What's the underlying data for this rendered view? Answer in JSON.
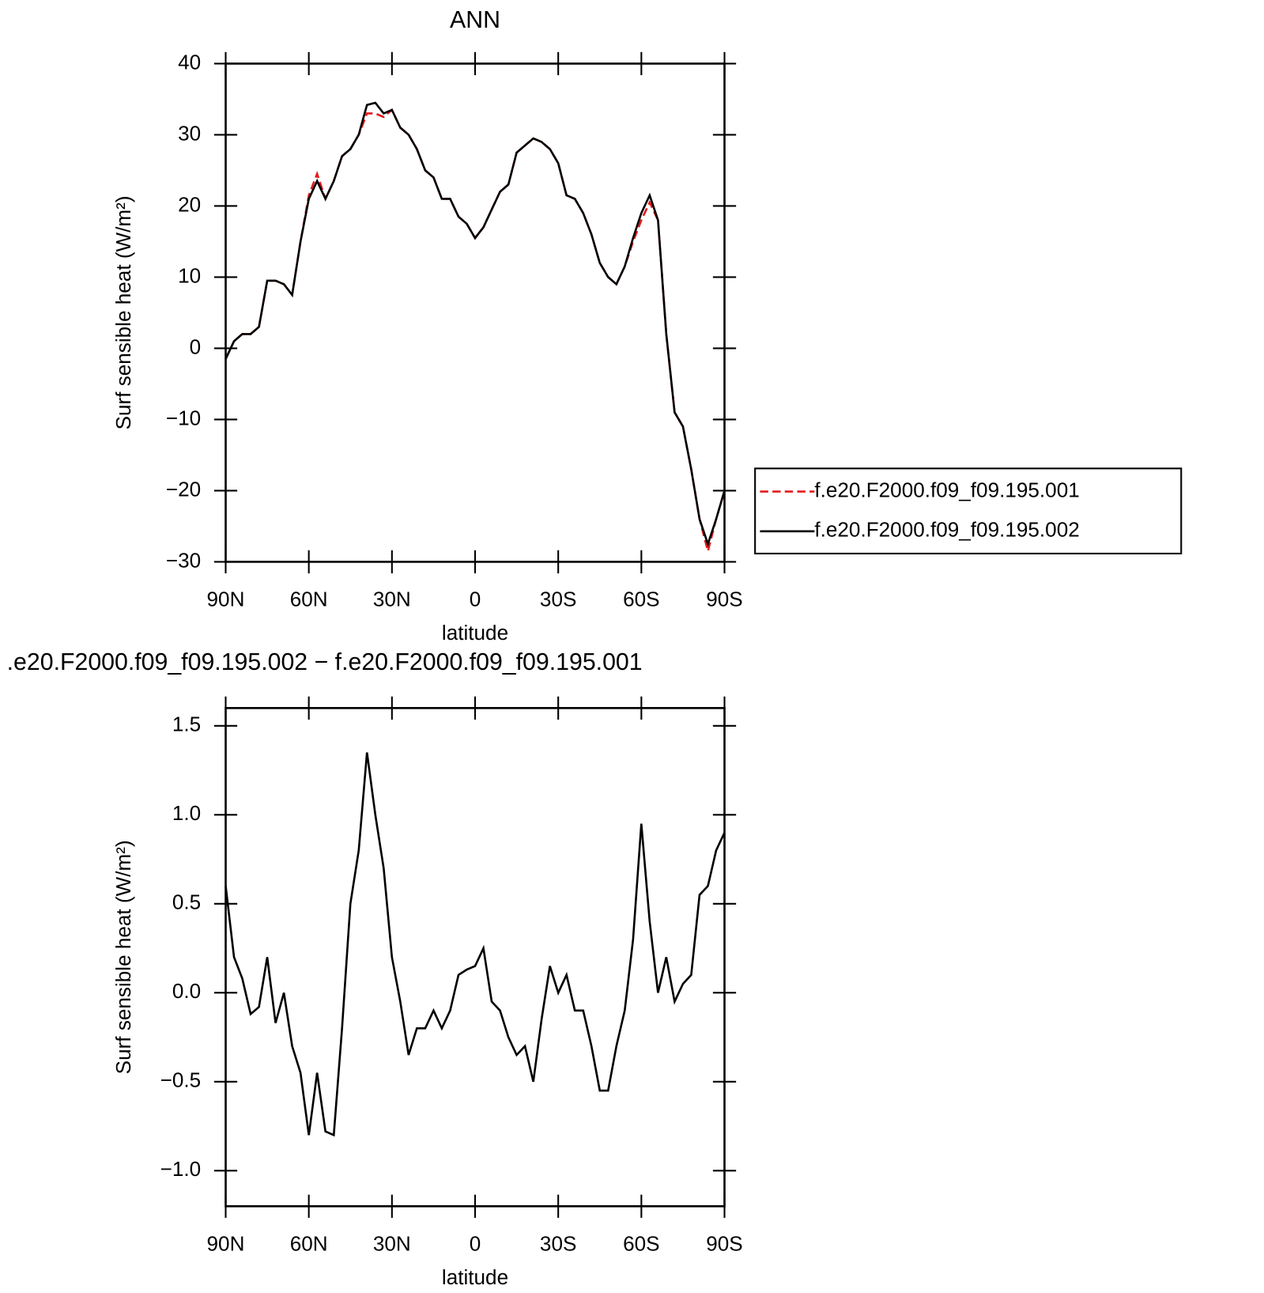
{
  "chart_data": [
    {
      "type": "line",
      "title": "ANN",
      "xlabel": "latitude",
      "ylabel": "Surf sensible heat (W/m²)",
      "x": [
        90,
        87,
        84,
        81,
        78,
        75,
        72,
        69,
        66,
        63,
        60,
        57,
        54,
        51,
        48,
        45,
        42,
        39,
        36,
        33,
        30,
        27,
        24,
        21,
        18,
        15,
        12,
        9,
        6,
        3,
        0,
        -3,
        -6,
        -9,
        -12,
        -15,
        -18,
        -21,
        -24,
        -27,
        -30,
        -33,
        -36,
        -39,
        -42,
        -45,
        -48,
        -51,
        -54,
        -57,
        -60,
        -63,
        -66,
        -69,
        -72,
        -75,
        -78,
        -81,
        -84,
        -87,
        -90
      ],
      "xlim": [
        90,
        -90
      ],
      "xticks": [
        {
          "value": 90,
          "label": "90N"
        },
        {
          "value": 60,
          "label": "60N"
        },
        {
          "value": 30,
          "label": "30N"
        },
        0,
        {
          "value": -30,
          "label": "30S"
        },
        {
          "value": -60,
          "label": "60S"
        },
        {
          "value": -90,
          "label": "90S"
        }
      ],
      "ylim": [
        -30,
        40
      ],
      "yticks": [
        {
          "value": -30,
          "label": "−30"
        },
        {
          "value": -20,
          "label": "−20"
        },
        {
          "value": -10,
          "label": "−10"
        },
        0,
        10,
        20,
        30,
        40
      ],
      "series": [
        {
          "name": "f.e20.F2000.f09_f09.195.001",
          "color": "#e41a1c",
          "style": "dashed",
          "values": [
            -1.5,
            1,
            2,
            2,
            3,
            9.5,
            9.5,
            9,
            7.5,
            15,
            21.5,
            24.5,
            21,
            23.5,
            27,
            28,
            30,
            33,
            33,
            32.5,
            33.5,
            31,
            30,
            28,
            25,
            24,
            21,
            21,
            18.5,
            17.5,
            15.5,
            17,
            19.5,
            22,
            23,
            27.5,
            28.5,
            29.5,
            29,
            28,
            26,
            21.5,
            21,
            19,
            16,
            12,
            10,
            9,
            11.5,
            15,
            18,
            20.5,
            18,
            2,
            -9,
            -11,
            -17,
            -24,
            -28.5,
            -24,
            -20
          ]
        },
        {
          "name": "f.e20.F2000.f09_f09.195.002",
          "color": "#000000",
          "style": "solid",
          "values": [
            -1.5,
            1,
            2,
            2,
            3,
            9.5,
            9.5,
            9,
            7.5,
            15,
            21,
            23.5,
            21,
            23.5,
            27,
            28,
            30,
            34.2,
            34.5,
            33,
            33.5,
            31,
            30,
            28,
            25,
            24,
            21,
            21,
            18.5,
            17.5,
            15.5,
            17,
            19.5,
            22,
            23,
            27.5,
            28.5,
            29.5,
            29,
            28,
            26,
            21.5,
            21,
            19,
            16,
            12,
            10,
            9,
            11.5,
            15.5,
            19,
            21.5,
            18,
            2,
            -9,
            -11,
            -17,
            -24,
            -27.5,
            -24,
            -20
          ]
        }
      ]
    },
    {
      "type": "line",
      "title": ".e20.F2000.f09_f09.195.002 − f.e20.F2000.f09_f09.195.001",
      "xlabel": "latitude",
      "ylabel": "Surf sensible heat (W/m²)",
      "x": [
        90,
        87,
        84,
        81,
        78,
        75,
        72,
        69,
        66,
        63,
        60,
        57,
        54,
        51,
        48,
        45,
        42,
        39,
        36,
        33,
        30,
        27,
        24,
        21,
        18,
        15,
        12,
        9,
        6,
        3,
        0,
        -3,
        -6,
        -9,
        -12,
        -15,
        -18,
        -21,
        -24,
        -27,
        -30,
        -33,
        -36,
        -39,
        -42,
        -45,
        -48,
        -51,
        -54,
        -57,
        -60,
        -63,
        -66,
        -69,
        -72,
        -75,
        -78,
        -81,
        -84,
        -87,
        -90
      ],
      "xlim": [
        90,
        -90
      ],
      "xticks": [
        {
          "value": 90,
          "label": "90N"
        },
        {
          "value": 60,
          "label": "60N"
        },
        {
          "value": 30,
          "label": "30N"
        },
        0,
        {
          "value": -30,
          "label": "30S"
        },
        {
          "value": -60,
          "label": "60S"
        },
        {
          "value": -90,
          "label": "90S"
        }
      ],
      "ylim": [
        -1.2,
        1.6
      ],
      "yticks": [
        {
          "value": -1,
          "label": "−1.0"
        },
        {
          "value": -0.5,
          "label": "−0.5"
        },
        {
          "value": 0,
          "label": "0.0"
        },
        0.5,
        {
          "value": 1,
          "label": "1.0"
        },
        1.5
      ],
      "color": "#000000",
      "values": [
        0.6,
        0.2,
        0.08,
        -0.12,
        -0.08,
        0.2,
        -0.17,
        0,
        -0.3,
        -0.45,
        -0.8,
        -0.45,
        -0.78,
        -0.8,
        -0.2,
        0.5,
        0.8,
        1.35,
        1,
        0.7,
        0.2,
        -0.05,
        -0.35,
        -0.2,
        -0.2,
        -0.1,
        -0.2,
        -0.1,
        0.1,
        0.13,
        0.15,
        0.25,
        -0.05,
        -0.1,
        -0.25,
        -0.35,
        -0.3,
        -0.5,
        -0.15,
        0.15,
        0,
        0.1,
        -0.1,
        -0.1,
        -0.3,
        -0.55,
        -0.55,
        -0.3,
        -0.1,
        0.3,
        0.95,
        0.4,
        0,
        0.2,
        -0.05,
        0.05,
        0.1,
        0.55,
        0.6,
        0.8,
        0.9
      ]
    }
  ]
}
